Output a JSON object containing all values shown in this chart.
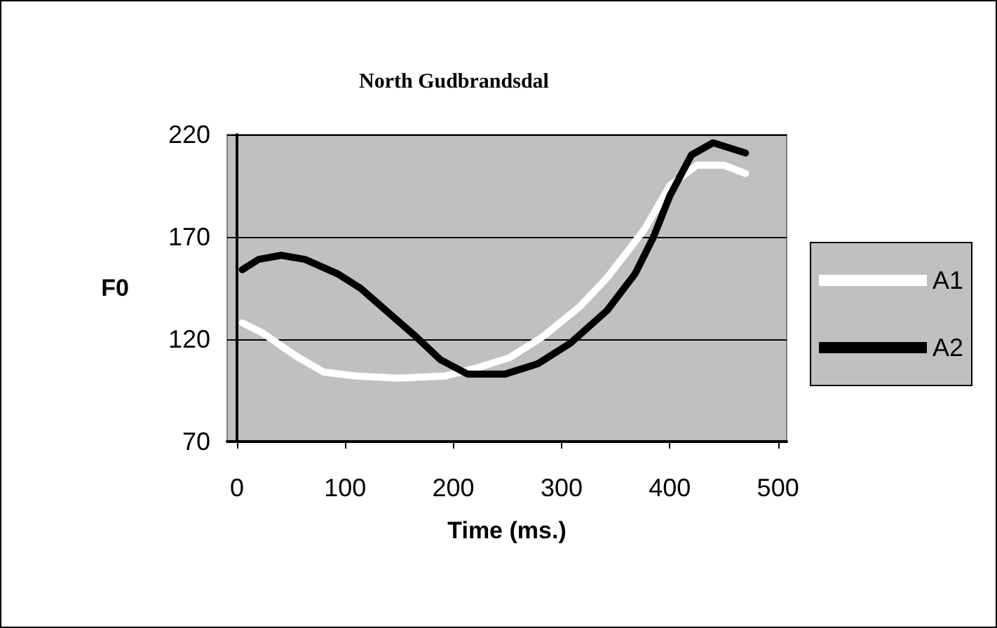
{
  "chart_data": {
    "type": "line",
    "title": "North Gudbrandsdal",
    "xlabel": "Time (ms.)",
    "ylabel": "F0",
    "xlim": [
      -9,
      508
    ],
    "xticks": [
      0,
      100,
      200,
      300,
      400,
      500
    ],
    "ylim": [
      70,
      220
    ],
    "yticks": [
      70,
      120,
      170,
      220
    ],
    "grid": "y",
    "legend": "right",
    "marker": "none",
    "line_style": "solid",
    "series": [
      {
        "name": "A1",
        "color": "#ffffff",
        "x": [
          5,
          24,
          54,
          80,
          110,
          149,
          192,
          222,
          252,
          282,
          317,
          342,
          364,
          377,
          400,
          425,
          450,
          470
        ],
        "values": [
          128,
          123,
          112,
          104,
          102,
          101,
          102,
          106,
          111,
          121,
          136,
          150,
          165,
          174,
          195,
          205,
          205,
          201
        ]
      },
      {
        "name": "A2",
        "color": "#000000",
        "x": [
          5,
          20,
          41,
          63,
          93,
          114,
          140,
          166,
          188,
          213,
          248,
          278,
          308,
          342,
          368,
          385,
          400,
          420,
          440,
          470
        ],
        "values": [
          154,
          159,
          161,
          159,
          152,
          145,
          133,
          121,
          110,
          103,
          103,
          108,
          118,
          134,
          152,
          170,
          190,
          210,
          216,
          211
        ]
      }
    ]
  }
}
